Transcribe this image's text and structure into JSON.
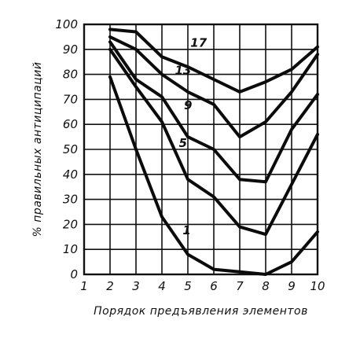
{
  "chart_data": {
    "type": "line",
    "x": [
      2,
      3,
      4,
      5,
      6,
      7,
      8,
      9,
      10
    ],
    "xticks": [
      1,
      2,
      3,
      4,
      5,
      6,
      7,
      8,
      9,
      10
    ],
    "yticks": [
      0,
      10,
      20,
      30,
      40,
      50,
      60,
      70,
      80,
      90,
      100
    ],
    "xlim": [
      1,
      10
    ],
    "ylim": [
      0,
      100
    ],
    "xlabel": "Порядок предъявления элементов",
    "ylabel": "% правильных антиципаций",
    "grid": true,
    "series": [
      {
        "name": "17",
        "values": [
          98,
          97,
          87,
          83,
          78,
          73,
          77,
          82,
          91
        ]
      },
      {
        "name": "13",
        "values": [
          95,
          90,
          80,
          73,
          68,
          55,
          61,
          73,
          88
        ]
      },
      {
        "name": "9",
        "values": [
          93,
          78,
          71,
          55,
          50,
          38,
          37,
          58,
          72
        ]
      },
      {
        "name": "5",
        "values": [
          90,
          75,
          61,
          38,
          31,
          19,
          16,
          36,
          56
        ]
      },
      {
        "name": "1",
        "values": [
          79,
          50,
          23,
          8,
          2,
          1,
          0,
          5,
          17
        ]
      }
    ]
  }
}
